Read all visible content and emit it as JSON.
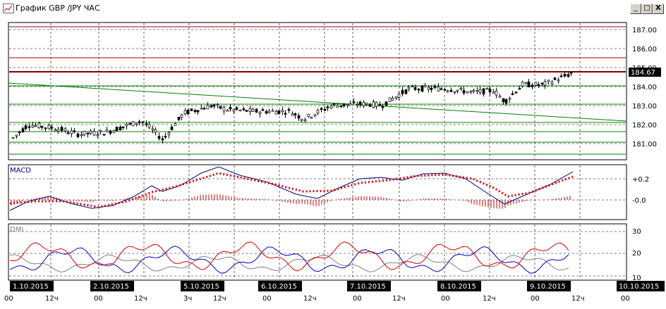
{
  "window": {
    "title": "График GBP /JPY  ЧАС",
    "minimize_label": "_",
    "maximize_label": "□",
    "close_label": "X"
  },
  "price_panel": {
    "current_price": "184.67",
    "y_ticks": [
      "187.00",
      "186.00",
      "185.00",
      "184.00",
      "183.00",
      "182.00",
      "181.00"
    ]
  },
  "macd_panel": {
    "label": "MACD",
    "y_ticks": [
      "+0.2",
      "-0.0"
    ]
  },
  "dmi_panel": {
    "label": "DMI",
    "y_ticks": [
      "30",
      "20",
      "10"
    ]
  },
  "date_labels": [
    "1.10.2015",
    "2.10.2015",
    "5.10.2015",
    "6.10.2015",
    "7.10.2015",
    "8.10.2015",
    "9.10.2015",
    "10.10.2015"
  ],
  "time_labels": [
    "00",
    "12ч",
    "00",
    "12ч",
    "3ч",
    "12ч",
    "00",
    "12ч",
    "00",
    "12ч",
    "00",
    "12ч",
    "00",
    "12ч",
    "00"
  ],
  "colors": {
    "bull_candle": "#ffffff",
    "bear_candle": "#000000",
    "resistance_lines": "#a00000",
    "support_lines": "#008000",
    "macd_line": "#000080",
    "macd_signal": "#e00000",
    "histogram": "#c00000",
    "dmi_plus": "#0000c0",
    "dmi_minus": "#e00000",
    "adx": "#808080"
  }
}
